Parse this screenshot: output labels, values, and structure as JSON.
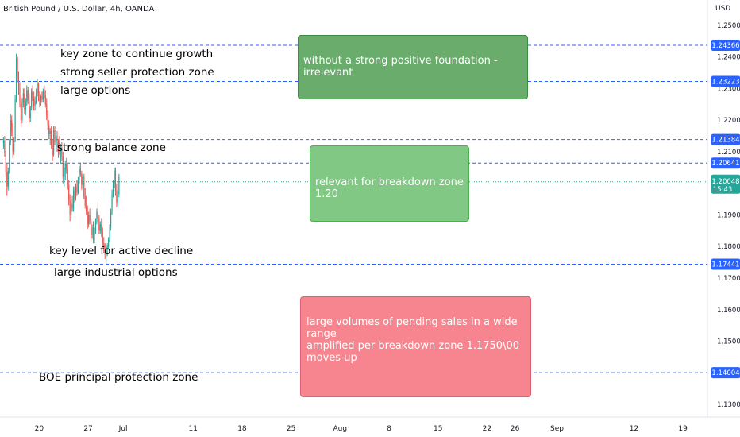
{
  "header": {
    "symbol": "British Pound / U.S. Dollar, 4h, OANDA",
    "currency": "USD"
  },
  "chart_data": {
    "type": "candlestick",
    "title": "British Pound / U.S. Dollar, 4h, OANDA",
    "ylabel": "USD",
    "ylim": [
      1.126,
      1.258
    ],
    "y_ticks": [
      "1.25000",
      "1.24000",
      "1.23000",
      "1.22000",
      "1.21000",
      "1.20000",
      "1.19000",
      "1.18000",
      "1.17000",
      "1.16000",
      "1.15000",
      "1.14000",
      "1.13000"
    ],
    "x_ticks": [
      "20",
      "27",
      "Jul",
      "11",
      "18",
      "25",
      "Aug",
      "8",
      "15",
      "22",
      "26",
      "Sep",
      "12",
      "19"
    ],
    "x_tick_days": [
      20,
      27,
      32,
      42,
      49,
      56,
      63,
      70,
      77,
      84,
      88,
      94,
      105,
      112
    ],
    "x_range_days": [
      14.4,
      115.5
    ],
    "last_price": {
      "value": "1.20048",
      "countdown": "15:43",
      "color": "#26a69a"
    },
    "horizontal_levels": [
      {
        "value": 1.24366,
        "label": "1.24366"
      },
      {
        "value": 1.23223,
        "label": "1.23223"
      },
      {
        "value": 1.21384,
        "label": "1.21384"
      },
      {
        "value": 1.20641,
        "label": "1.20641"
      },
      {
        "value": 1.17441,
        "label": "1.17441"
      },
      {
        "value": 1.14004,
        "label": "1.14004"
      }
    ],
    "level_color": "#2962ff",
    "colors": {
      "up": "#26a69a",
      "down": "#ef5350"
    },
    "ohlc_start_day": 14.9,
    "ohlc_step_days": 0.1667,
    "ohlc": [
      [
        1.2128,
        1.2145,
        1.211,
        1.2133
      ],
      [
        1.2133,
        1.215,
        1.2085,
        1.2095
      ],
      [
        1.2095,
        1.2102,
        1.202,
        1.2035
      ],
      [
        1.2035,
        1.206,
        1.196,
        1.199
      ],
      [
        1.199,
        1.205,
        1.1978,
        1.204
      ],
      [
        1.204,
        1.214,
        1.203,
        1.213
      ],
      [
        1.213,
        1.222,
        1.212,
        1.22
      ],
      [
        1.22,
        1.2215,
        1.215,
        1.2165
      ],
      [
        1.2165,
        1.219,
        1.208,
        1.21
      ],
      [
        1.21,
        1.2145,
        1.209,
        1.2135
      ],
      [
        1.2135,
        1.228,
        1.213,
        1.2265
      ],
      [
        1.2265,
        1.241,
        1.2255,
        1.2395
      ],
      [
        1.2395,
        1.24,
        1.232,
        1.233
      ],
      [
        1.233,
        1.2355,
        1.228,
        1.23
      ],
      [
        1.23,
        1.232,
        1.224,
        1.2255
      ],
      [
        1.2255,
        1.228,
        1.218,
        1.22
      ],
      [
        1.22,
        1.227,
        1.219,
        1.2255
      ],
      [
        1.2255,
        1.23,
        1.224,
        1.2285
      ],
      [
        1.2285,
        1.23,
        1.222,
        1.2235
      ],
      [
        1.2235,
        1.227,
        1.2215,
        1.2255
      ],
      [
        1.2255,
        1.231,
        1.2245,
        1.2295
      ],
      [
        1.2295,
        1.2305,
        1.225,
        1.2262
      ],
      [
        1.2262,
        1.2285,
        1.219,
        1.2205
      ],
      [
        1.2205,
        1.2245,
        1.2195,
        1.224
      ],
      [
        1.224,
        1.23,
        1.223,
        1.229
      ],
      [
        1.229,
        1.231,
        1.226,
        1.227
      ],
      [
        1.227,
        1.229,
        1.223,
        1.2245
      ],
      [
        1.2245,
        1.2275,
        1.223,
        1.2262
      ],
      [
        1.2262,
        1.23,
        1.225,
        1.2285
      ],
      [
        1.2285,
        1.233,
        1.2275,
        1.2315
      ],
      [
        1.2315,
        1.232,
        1.226,
        1.227
      ],
      [
        1.227,
        1.229,
        1.224,
        1.2255
      ],
      [
        1.2255,
        1.2282,
        1.2245,
        1.2275
      ],
      [
        1.2275,
        1.229,
        1.2255,
        1.2265
      ],
      [
        1.2265,
        1.23,
        1.2255,
        1.229
      ],
      [
        1.229,
        1.231,
        1.227,
        1.228
      ],
      [
        1.228,
        1.2295,
        1.224,
        1.225
      ],
      [
        1.225,
        1.227,
        1.22,
        1.2215
      ],
      [
        1.2215,
        1.223,
        1.217,
        1.2185
      ],
      [
        1.2185,
        1.22,
        1.214,
        1.2155
      ],
      [
        1.2155,
        1.2175,
        1.212,
        1.2165
      ],
      [
        1.2165,
        1.218,
        1.211,
        1.212
      ],
      [
        1.212,
        1.214,
        1.207,
        1.209
      ],
      [
        1.209,
        1.218,
        1.2085,
        1.217
      ],
      [
        1.217,
        1.218,
        1.212,
        1.213
      ],
      [
        1.213,
        1.216,
        1.211,
        1.215
      ],
      [
        1.215,
        1.2165,
        1.21,
        1.2115
      ],
      [
        1.2115,
        1.214,
        1.208,
        1.213
      ],
      [
        1.213,
        1.215,
        1.209,
        1.21
      ],
      [
        1.21,
        1.2125,
        1.206,
        1.211
      ],
      [
        1.211,
        1.213,
        1.207,
        1.2085
      ],
      [
        1.2085,
        1.21,
        1.2,
        1.202
      ],
      [
        1.202,
        1.205,
        1.199,
        1.204
      ],
      [
        1.204,
        1.207,
        1.201,
        1.206
      ],
      [
        1.206,
        1.208,
        1.203,
        1.2045
      ],
      [
        1.2045,
        1.206,
        1.198,
        1.1995
      ],
      [
        1.1995,
        1.201,
        1.193,
        1.1945
      ],
      [
        1.1945,
        1.1965,
        1.188,
        1.19
      ],
      [
        1.19,
        1.195,
        1.189,
        1.1935
      ],
      [
        1.1935,
        1.196,
        1.191,
        1.192
      ],
      [
        1.192,
        1.199,
        1.191,
        1.1975
      ],
      [
        1.1975,
        1.199,
        1.194,
        1.1955
      ],
      [
        1.1955,
        1.2,
        1.1945,
        1.199
      ],
      [
        1.199,
        1.201,
        1.196,
        1.197
      ],
      [
        1.197,
        1.202,
        1.1965,
        1.201
      ],
      [
        1.201,
        1.2055,
        1.2,
        1.2045
      ],
      [
        1.2045,
        1.2065,
        1.202,
        1.203
      ],
      [
        1.203,
        1.204,
        1.198,
        1.1995
      ],
      [
        1.1995,
        1.203,
        1.1985,
        1.202
      ],
      [
        1.202,
        1.203,
        1.195,
        1.196
      ],
      [
        1.196,
        1.1985,
        1.192,
        1.193
      ],
      [
        1.193,
        1.196,
        1.19,
        1.191
      ],
      [
        1.191,
        1.193,
        1.1855,
        1.187
      ],
      [
        1.187,
        1.191,
        1.186,
        1.19
      ],
      [
        1.19,
        1.192,
        1.187,
        1.188
      ],
      [
        1.188,
        1.189,
        1.182,
        1.1835
      ],
      [
        1.1835,
        1.187,
        1.1825,
        1.186
      ],
      [
        1.186,
        1.188,
        1.181,
        1.182
      ],
      [
        1.182,
        1.186,
        1.181,
        1.185
      ],
      [
        1.185,
        1.189,
        1.184,
        1.188
      ],
      [
        1.188,
        1.192,
        1.187,
        1.191
      ],
      [
        1.191,
        1.194,
        1.188,
        1.189
      ],
      [
        1.189,
        1.19,
        1.184,
        1.185
      ],
      [
        1.185,
        1.188,
        1.184,
        1.187
      ],
      [
        1.187,
        1.189,
        1.183,
        1.1845
      ],
      [
        1.1845,
        1.186,
        1.18,
        1.181
      ],
      [
        1.181,
        1.183,
        1.178,
        1.1795
      ],
      [
        1.1795,
        1.181,
        1.176,
        1.1775
      ],
      [
        1.1775,
        1.18,
        1.1745,
        1.179
      ],
      [
        1.179,
        1.181,
        1.177,
        1.18
      ],
      [
        1.18,
        1.183,
        1.179,
        1.1822
      ],
      [
        1.1822,
        1.187,
        1.1815,
        1.186
      ],
      [
        1.186,
        1.192,
        1.185,
        1.191
      ],
      [
        1.191,
        1.198,
        1.19,
        1.1965
      ],
      [
        1.1965,
        1.201,
        1.1955,
        1.2
      ],
      [
        1.2,
        1.205,
        1.1985,
        1.204
      ],
      [
        1.204,
        1.205,
        1.196,
        1.1975
      ],
      [
        1.1975,
        1.2,
        1.1925,
        1.194
      ],
      [
        1.194,
        1.198,
        1.193,
        1.1965
      ],
      [
        1.1965,
        1.203,
        1.1955,
        1.202
      ]
    ],
    "annotations": [
      "key zone to continue growth",
      "strong seller protection zone",
      "large options",
      "strong balance zone",
      "key level for active decline",
      "large industrial options",
      "BOE principal protection zone"
    ],
    "boxes": [
      {
        "text": [
          "without a strong positive foundation - irrelevant"
        ]
      },
      {
        "text": [
          "relevant for breakdown zone 1.20"
        ]
      },
      {
        "text": [
          "large volumes of pending sales in a wide range",
          "amplified per breakdown zone 1.1750\\00",
          "moves up"
        ]
      }
    ],
    "grid": false,
    "legend": "none"
  }
}
